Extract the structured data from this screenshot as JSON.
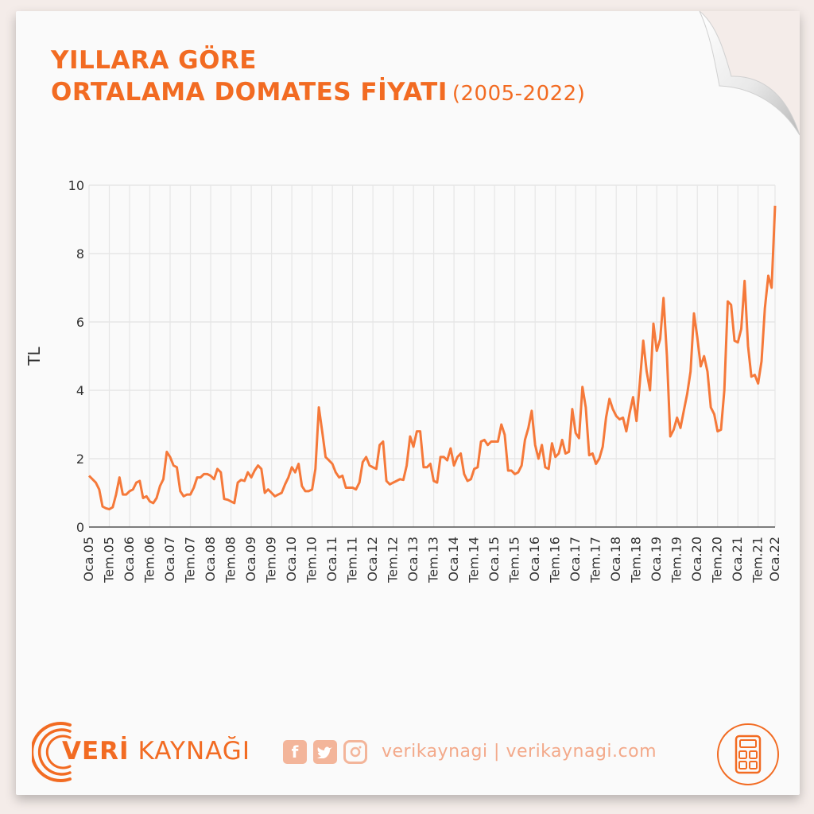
{
  "title": {
    "line1": "YILLARA GÖRE",
    "line2": "ORTALAMA DOMATES FİYATI",
    "years": "(2005-2022)"
  },
  "footer": {
    "brand_bold": "VERİ",
    "brand_rest": "KAYNAĞI",
    "social_handle": "verikaynagi | verikaynagi.com",
    "icons": [
      "facebook-icon",
      "twitter-icon",
      "instagram-icon",
      "calculator-icon"
    ]
  },
  "colors": {
    "accent": "#f26b22",
    "line": "#f5793a",
    "grid": "#e6e6e6"
  },
  "chart_data": {
    "type": "line",
    "title": "YILLARA GÖRE ORTALAMA DOMATES FİYATI (2005-2022)",
    "xlabel": "",
    "ylabel": "TL",
    "ylim": [
      0,
      10
    ],
    "yticks": [
      0,
      2,
      4,
      6,
      8,
      10
    ],
    "grid": true,
    "xtick_labels": [
      "Oca.05",
      "Tem.05",
      "Oca.06",
      "Tem.06",
      "Oca.07",
      "Tem.07",
      "Oca.08",
      "Tem.08",
      "Oca.09",
      "Tem.09",
      "Oca.10",
      "Tem.10",
      "Oca.11",
      "Tem.11",
      "Oca.12",
      "Tem.12",
      "Oca.13",
      "Tem.13",
      "Oca.14",
      "Tem.14",
      "Oca.15",
      "Tem.15",
      "Oca.16",
      "Tem.16",
      "Oca.17",
      "Tem.17",
      "Oca.18",
      "Tem.18",
      "Oca.19",
      "Tem.19",
      "Oca.20",
      "Tem.20",
      "Oca.21",
      "Tem.21",
      "Oca.22"
    ],
    "series": [
      {
        "name": "",
        "start": "Oca.05",
        "frequency": "monthly",
        "values": [
          1.5,
          1.4,
          1.3,
          1.1,
          0.6,
          0.55,
          0.52,
          0.58,
          0.95,
          1.45,
          0.95,
          0.95,
          1.05,
          1.1,
          1.3,
          1.35,
          0.85,
          0.9,
          0.75,
          0.7,
          0.85,
          1.2,
          1.4,
          2.2,
          2.05,
          1.8,
          1.75,
          1.05,
          0.9,
          0.95,
          0.95,
          1.15,
          1.45,
          1.45,
          1.55,
          1.55,
          1.5,
          1.4,
          1.7,
          1.6,
          0.82,
          0.8,
          0.75,
          0.7,
          1.3,
          1.38,
          1.35,
          1.6,
          1.45,
          1.65,
          1.8,
          1.7,
          1.0,
          1.1,
          1.0,
          0.9,
          0.95,
          1.0,
          1.25,
          1.45,
          1.75,
          1.6,
          1.85,
          1.2,
          1.05,
          1.05,
          1.1,
          1.7,
          3.5,
          2.8,
          2.05,
          1.95,
          1.85,
          1.6,
          1.45,
          1.5,
          1.15,
          1.15,
          1.15,
          1.1,
          1.3,
          1.9,
          2.05,
          1.8,
          1.75,
          1.7,
          2.4,
          2.5,
          1.35,
          1.25,
          1.3,
          1.35,
          1.4,
          1.38,
          1.8,
          2.65,
          2.35,
          2.8,
          2.8,
          1.75,
          1.75,
          1.85,
          1.35,
          1.3,
          2.05,
          2.05,
          1.95,
          2.3,
          1.8,
          2.05,
          2.15,
          1.55,
          1.35,
          1.4,
          1.7,
          1.75,
          2.5,
          2.55,
          2.4,
          2.5,
          2.5,
          2.5,
          3.0,
          2.7,
          1.65,
          1.65,
          1.55,
          1.6,
          1.8,
          2.55,
          2.9,
          3.4,
          2.4,
          2.0,
          2.4,
          1.75,
          1.7,
          2.45,
          2.05,
          2.15,
          2.55,
          2.15,
          2.2,
          3.45,
          2.75,
          2.6,
          4.1,
          3.5,
          2.1,
          2.15,
          1.85,
          2.0,
          2.35,
          3.2,
          3.75,
          3.45,
          3.25,
          3.15,
          3.2,
          2.8,
          3.35,
          3.8,
          3.1,
          4.25,
          5.45,
          4.55,
          4.0,
          5.95,
          5.15,
          5.5,
          6.7,
          5.0,
          2.65,
          2.85,
          3.2,
          2.9,
          3.4,
          3.9,
          4.55,
          6.25,
          5.55,
          4.7,
          5.0,
          4.55,
          3.5,
          3.3,
          2.8,
          2.85,
          4.0,
          6.6,
          6.5,
          5.45,
          5.4,
          5.8,
          7.2,
          5.3,
          4.4,
          4.45,
          4.2,
          4.85,
          6.4,
          7.35,
          7.0,
          9.4
        ]
      }
    ]
  }
}
